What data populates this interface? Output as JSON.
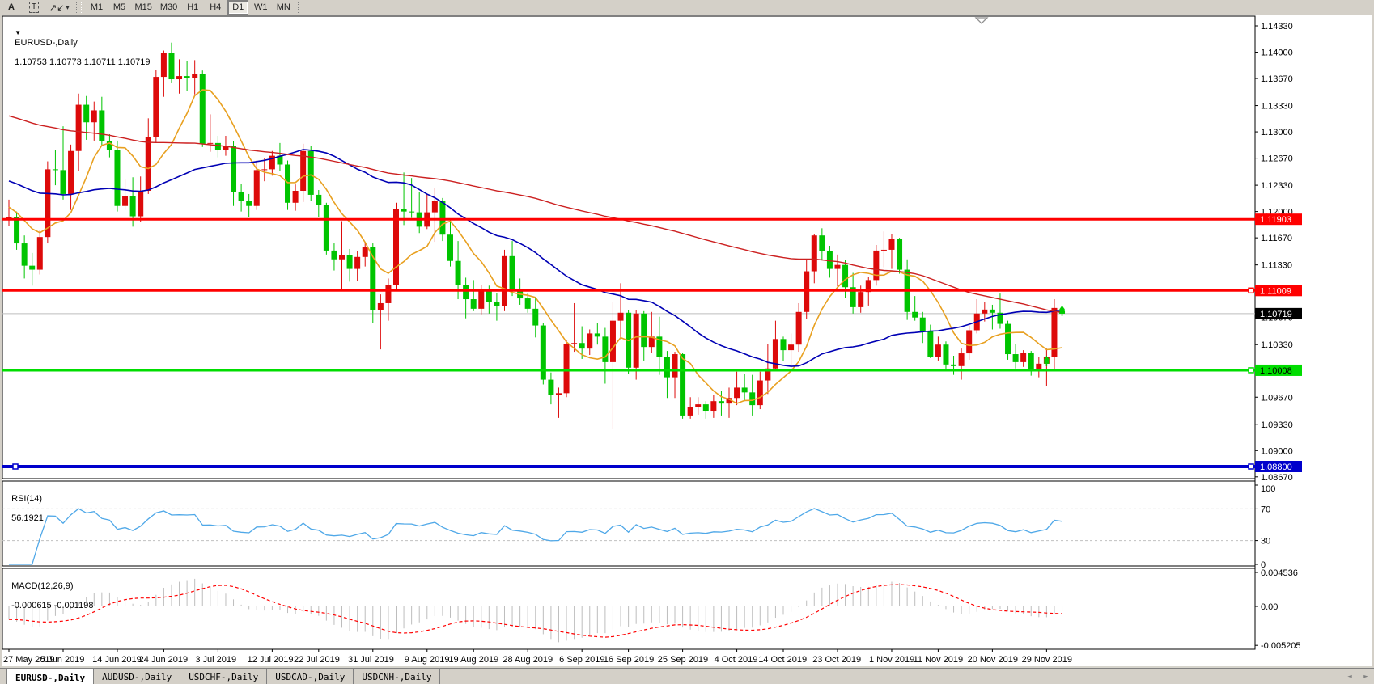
{
  "toolbar": {
    "buttons": [
      {
        "id": "text-a",
        "label": "A"
      },
      {
        "id": "text-label",
        "label": "T"
      },
      {
        "id": "arrow-objects",
        "label": "↗↙",
        "caret": "▾"
      }
    ],
    "timeframes": [
      "M1",
      "M5",
      "M15",
      "M30",
      "H1",
      "H4",
      "D1",
      "W1",
      "MN"
    ],
    "active_timeframe": "D1"
  },
  "chart_header": {
    "collapse_icon": "▼",
    "title": "EURUSD-,Daily",
    "ohlc_text": "1.10753 1.10773 1.10711 1.10719"
  },
  "tabs": {
    "items": [
      "EURUSD-,Daily",
      "AUDUSD-,Daily",
      "USDCHF-,Daily",
      "USDCAD-,Daily",
      "USDCNH-,Daily"
    ],
    "active_index": 0,
    "nav_left": "◄",
    "nav_right": "►"
  },
  "chart_data": {
    "type": "candlestick",
    "symbol": "EURUSD-,Daily",
    "current_ohlc": {
      "open": 1.10753,
      "high": 1.10773,
      "low": 1.10711,
      "close": 1.10719
    },
    "bull_color": "#dd0a0a",
    "bear_color": "#00c400",
    "ylim": [
      1.0867,
      1.1433
    ],
    "price_axis_ticks": [
      "1.14330",
      "1.14000",
      "1.13670",
      "1.13330",
      "1.13000",
      "1.12670",
      "1.12330",
      "1.12000",
      "1.11670",
      "1.11330",
      "1.10670",
      "1.10330",
      "1.09670",
      "1.09330",
      "1.09000",
      "1.08670"
    ],
    "hlines": [
      {
        "price": 1.11903,
        "label": "1.11903",
        "color": "#ff0000",
        "width": 3,
        "label_fg": "#ffffff",
        "handles": []
      },
      {
        "price": 1.11009,
        "label": "1.11009",
        "color": "#ff0000",
        "width": 3,
        "label_fg": "#ffffff",
        "handles": [
          "right"
        ]
      },
      {
        "price": 1.10008,
        "label": "1.10008",
        "color": "#00dd00",
        "width": 3,
        "label_fg": "#000000",
        "handles": [
          "right"
        ]
      },
      {
        "price": 1.088,
        "label": "1.08800",
        "color": "#0000cc",
        "width": 4,
        "label_fg": "#ffffff",
        "handles": [
          "left",
          "right"
        ]
      }
    ],
    "current_price_line": {
      "price": 1.10719,
      "label": "1.10719",
      "color": "#bdbdbd",
      "label_bg": "#000000",
      "label_fg": "#ffffff"
    },
    "moving_averages": [
      {
        "name": "fast-ma",
        "period": 8,
        "color": "#e8a020",
        "width": 1.6
      },
      {
        "name": "medium-ma",
        "period": 34,
        "color": "#0000b4",
        "width": 1.6
      },
      {
        "name": "slow-ma",
        "period": 100,
        "color": "#cc2020",
        "width": 1.4
      }
    ],
    "buy_arrows": [
      {
        "index": 134,
        "price": 1.1013,
        "color": "#00cc00"
      },
      {
        "index": 136,
        "price": 1.1076,
        "color": "#00cc00"
      }
    ],
    "date_ticks": [
      {
        "index": 0,
        "label": "27 May 2019"
      },
      {
        "index": 7,
        "label": "5 Jun 2019"
      },
      {
        "index": 14,
        "label": "14 Jun 2019"
      },
      {
        "index": 20,
        "label": "24 Jun 2019"
      },
      {
        "index": 27,
        "label": "3 Jul 2019"
      },
      {
        "index": 34,
        "label": "12 Jul 2019"
      },
      {
        "index": 40,
        "label": "22 Jul 2019"
      },
      {
        "index": 47,
        "label": "31 Jul 2019"
      },
      {
        "index": 54,
        "label": "9 Aug 2019"
      },
      {
        "index": 60,
        "label": "19 Aug 2019"
      },
      {
        "index": 67,
        "label": "28 Aug 2019"
      },
      {
        "index": 74,
        "label": "6 Sep 2019"
      },
      {
        "index": 80,
        "label": "16 Sep 2019"
      },
      {
        "index": 87,
        "label": "25 Sep 2019"
      },
      {
        "index": 94,
        "label": "4 Oct 2019"
      },
      {
        "index": 100,
        "label": "14 Oct 2019"
      },
      {
        "index": 107,
        "label": "23 Oct 2019"
      },
      {
        "index": 114,
        "label": "1 Nov 2019"
      },
      {
        "index": 120,
        "label": "11 Nov 2019"
      },
      {
        "index": 127,
        "label": "20 Nov 2019"
      },
      {
        "index": 134,
        "label": "29 Nov 2019"
      }
    ],
    "candles_ohlc": [
      [
        1.119,
        1.1215,
        1.1182,
        1.1193
      ],
      [
        1.1193,
        1.12,
        1.1152,
        1.116
      ],
      [
        1.116,
        1.117,
        1.1116,
        1.1132
      ],
      [
        1.1132,
        1.1148,
        1.1107,
        1.1127
      ],
      [
        1.1127,
        1.1176,
        1.1121,
        1.1168
      ],
      [
        1.1168,
        1.1263,
        1.116,
        1.1253
      ],
      [
        1.1253,
        1.1277,
        1.1233,
        1.1252
      ],
      [
        1.1252,
        1.1307,
        1.1215,
        1.1222
      ],
      [
        1.1222,
        1.1284,
        1.1202,
        1.1276
      ],
      [
        1.1276,
        1.1348,
        1.1251,
        1.1334
      ],
      [
        1.1334,
        1.1345,
        1.129,
        1.1312
      ],
      [
        1.1312,
        1.1338,
        1.1289,
        1.1327
      ],
      [
        1.1327,
        1.1344,
        1.1282,
        1.1288
      ],
      [
        1.1288,
        1.1297,
        1.1268,
        1.1277
      ],
      [
        1.1277,
        1.1289,
        1.12,
        1.1207
      ],
      [
        1.1207,
        1.124,
        1.1202,
        1.1219
      ],
      [
        1.1219,
        1.1243,
        1.1181,
        1.1194
      ],
      [
        1.1194,
        1.1244,
        1.1187,
        1.1226
      ],
      [
        1.1226,
        1.1317,
        1.1222,
        1.1293
      ],
      [
        1.1293,
        1.1378,
        1.1286,
        1.1369
      ],
      [
        1.1369,
        1.1402,
        1.1344,
        1.1399
      ],
      [
        1.1399,
        1.1412,
        1.1361,
        1.1366
      ],
      [
        1.1366,
        1.1391,
        1.1348,
        1.137
      ],
      [
        1.137,
        1.1389,
        1.1351,
        1.1368
      ],
      [
        1.1368,
        1.139,
        1.1347,
        1.1373
      ],
      [
        1.1373,
        1.1377,
        1.1281,
        1.1285
      ],
      [
        1.1285,
        1.1322,
        1.1275,
        1.1286
      ],
      [
        1.1286,
        1.1295,
        1.1268,
        1.1277
      ],
      [
        1.1277,
        1.1295,
        1.127,
        1.1282
      ],
      [
        1.1282,
        1.1288,
        1.1207,
        1.1225
      ],
      [
        1.1225,
        1.1235,
        1.12,
        1.1213
      ],
      [
        1.1213,
        1.1222,
        1.1193,
        1.1207
      ],
      [
        1.1207,
        1.1264,
        1.1202,
        1.1252
      ],
      [
        1.1252,
        1.1267,
        1.1238,
        1.1253
      ],
      [
        1.1253,
        1.1276,
        1.1245,
        1.127
      ],
      [
        1.127,
        1.1286,
        1.1251,
        1.1259
      ],
      [
        1.1259,
        1.1264,
        1.1202,
        1.1211
      ],
      [
        1.1211,
        1.1234,
        1.1201,
        1.1226
      ],
      [
        1.1226,
        1.1285,
        1.1212,
        1.1276
      ],
      [
        1.1276,
        1.1282,
        1.1213,
        1.1221
      ],
      [
        1.1221,
        1.1227,
        1.1193,
        1.1208
      ],
      [
        1.1208,
        1.1211,
        1.1146,
        1.1151
      ],
      [
        1.1151,
        1.116,
        1.1126,
        1.114
      ],
      [
        1.114,
        1.1188,
        1.1101,
        1.1145
      ],
      [
        1.1145,
        1.1153,
        1.1112,
        1.1128
      ],
      [
        1.1128,
        1.115,
        1.1113,
        1.1143
      ],
      [
        1.1143,
        1.1162,
        1.1131,
        1.1155
      ],
      [
        1.1155,
        1.116,
        1.106,
        1.1076
      ],
      [
        1.1076,
        1.1096,
        1.1027,
        1.1085
      ],
      [
        1.1085,
        1.1116,
        1.1063,
        1.1108
      ],
      [
        1.1108,
        1.1211,
        1.1101,
        1.1203
      ],
      [
        1.1203,
        1.1249,
        1.1183,
        1.12
      ],
      [
        1.12,
        1.1242,
        1.1192,
        1.1199
      ],
      [
        1.1199,
        1.1224,
        1.1173,
        1.1181
      ],
      [
        1.1181,
        1.1222,
        1.1178,
        1.1199
      ],
      [
        1.1199,
        1.123,
        1.1162,
        1.1213
      ],
      [
        1.1213,
        1.1217,
        1.1163,
        1.1171
      ],
      [
        1.1171,
        1.119,
        1.1131,
        1.1138
      ],
      [
        1.1138,
        1.1163,
        1.109,
        1.1108
      ],
      [
        1.1108,
        1.1117,
        1.1066,
        1.109
      ],
      [
        1.109,
        1.1114,
        1.1075,
        1.1078
      ],
      [
        1.1078,
        1.1108,
        1.1071,
        1.11
      ],
      [
        1.11,
        1.1107,
        1.1072,
        1.1086
      ],
      [
        1.1086,
        1.1098,
        1.1063,
        1.1081
      ],
      [
        1.1081,
        1.1152,
        1.1075,
        1.1144
      ],
      [
        1.1144,
        1.1163,
        1.1094,
        1.1101
      ],
      [
        1.1101,
        1.1116,
        1.1083,
        1.1091
      ],
      [
        1.1091,
        1.1098,
        1.1073,
        1.1078
      ],
      [
        1.1078,
        1.1093,
        1.1042,
        1.1057
      ],
      [
        1.1057,
        1.106,
        1.0983,
        1.0989
      ],
      [
        1.0989,
        1.0998,
        1.0958,
        1.097
      ],
      [
        1.097,
        1.0979,
        1.0941,
        1.0972
      ],
      [
        1.0972,
        1.1039,
        1.0967,
        1.1034
      ],
      [
        1.1034,
        1.1085,
        1.1024,
        1.1035
      ],
      [
        1.1035,
        1.1056,
        1.1015,
        1.1028
      ],
      [
        1.1028,
        1.1052,
        1.102,
        1.1047
      ],
      [
        1.1047,
        1.106,
        1.1033,
        1.1043
      ],
      [
        1.1043,
        1.1054,
        1.0984,
        1.1011
      ],
      [
        1.1011,
        1.1087,
        1.0927,
        1.1063
      ],
      [
        1.1063,
        1.111,
        1.1041,
        1.1073
      ],
      [
        1.1073,
        1.1076,
        1.0996,
        1.1004
      ],
      [
        1.1004,
        1.1076,
        1.0989,
        1.1072
      ],
      [
        1.1072,
        1.1075,
        1.1013,
        1.103
      ],
      [
        1.103,
        1.1074,
        1.1023,
        1.1043
      ],
      [
        1.1043,
        1.1068,
        1.0995,
        1.1017
      ],
      [
        1.1017,
        1.1025,
        1.0966,
        1.0992
      ],
      [
        1.0992,
        1.1024,
        1.0966,
        1.1021
      ],
      [
        1.1021,
        1.1023,
        1.094,
        1.0944
      ],
      [
        1.0944,
        1.0967,
        1.094,
        1.0955
      ],
      [
        1.0955,
        1.0967,
        1.0945,
        1.0958
      ],
      [
        1.0958,
        1.0962,
        1.094,
        1.095
      ],
      [
        1.095,
        1.097,
        1.0941,
        1.0962
      ],
      [
        1.0962,
        1.0975,
        1.0944,
        1.0959
      ],
      [
        1.0959,
        1.0979,
        1.0941,
        1.0966
      ],
      [
        1.0966,
        1.0999,
        1.0957,
        1.0979
      ],
      [
        1.0979,
        1.0996,
        1.0962,
        1.0973
      ],
      [
        1.0973,
        1.0995,
        1.0944,
        1.0957
      ],
      [
        1.0957,
        1.0999,
        1.0952,
        1.0988
      ],
      [
        1.0988,
        1.1034,
        1.0971,
        1.1003
      ],
      [
        1.1003,
        1.1063,
        1.1002,
        1.104
      ],
      [
        1.104,
        1.1043,
        1.1012,
        1.1026
      ],
      [
        1.1026,
        1.1047,
        1.1001,
        1.1033
      ],
      [
        1.1033,
        1.1085,
        1.1024,
        1.1074
      ],
      [
        1.1074,
        1.114,
        1.1065,
        1.1125
      ],
      [
        1.1125,
        1.1172,
        1.111,
        1.117
      ],
      [
        1.117,
        1.1179,
        1.1139,
        1.115
      ],
      [
        1.115,
        1.1157,
        1.1117,
        1.1128
      ],
      [
        1.1128,
        1.1146,
        1.1106,
        1.1133
      ],
      [
        1.1133,
        1.1139,
        1.1092,
        1.1105
      ],
      [
        1.1105,
        1.1123,
        1.1072,
        1.108
      ],
      [
        1.108,
        1.1107,
        1.1073,
        1.1099
      ],
      [
        1.1099,
        1.1118,
        1.1082,
        1.1114
      ],
      [
        1.1114,
        1.1158,
        1.1107,
        1.1151
      ],
      [
        1.1151,
        1.1175,
        1.113,
        1.1152
      ],
      [
        1.1152,
        1.1172,
        1.1128,
        1.1166
      ],
      [
        1.1166,
        1.1167,
        1.1122,
        1.1127
      ],
      [
        1.1127,
        1.114,
        1.1064,
        1.1074
      ],
      [
        1.1074,
        1.1094,
        1.1063,
        1.1067
      ],
      [
        1.1067,
        1.1074,
        1.1035,
        1.105
      ],
      [
        1.105,
        1.1058,
        1.1016,
        1.1018
      ],
      [
        1.1018,
        1.1043,
        1.1013,
        1.1033
      ],
      [
        1.1033,
        1.1037,
        1.1002,
        1.1008
      ],
      [
        1.1008,
        1.1019,
        1.0995,
        1.1006
      ],
      [
        1.1006,
        1.1028,
        1.0989,
        1.1022
      ],
      [
        1.1022,
        1.1057,
        1.1014,
        1.1051
      ],
      [
        1.1051,
        1.109,
        1.1047,
        1.1072
      ],
      [
        1.1072,
        1.1086,
        1.1062,
        1.1077
      ],
      [
        1.1077,
        1.1083,
        1.1052,
        1.1073
      ],
      [
        1.1073,
        1.1097,
        1.1053,
        1.1059
      ],
      [
        1.1059,
        1.1063,
        1.1014,
        1.1021
      ],
      [
        1.1021,
        1.1034,
        1.1003,
        1.1011
      ],
      [
        1.1011,
        1.1026,
        1.1005,
        1.1023
      ],
      [
        1.1023,
        1.1025,
        1.0994,
        1.1
      ],
      [
        1.1,
        1.1017,
        1.0992,
        1.1009
      ],
      [
        1.1009,
        1.1028,
        1.0981,
        1.1018
      ],
      [
        1.1018,
        1.109,
        1.1002,
        1.1079
      ],
      [
        1.10753,
        1.10773,
        1.10711,
        1.10719
      ]
    ],
    "indicators": {
      "rsi": {
        "label": "RSI(14)",
        "value_text": "56.1921",
        "period": 14,
        "levels": [
          70,
          30
        ],
        "axis_ticks": [
          100,
          70,
          30,
          0
        ],
        "line_color": "#4fa8e8"
      },
      "macd": {
        "label": "MACD(12,26,9)",
        "values_text": "-0.000615 -0.001198",
        "fast": 12,
        "slow": 26,
        "signal": 9,
        "axis_ticks": [
          "0.004536",
          "0.00",
          "-0.005205"
        ],
        "axis_values": [
          0.004536,
          0,
          -0.005205
        ],
        "hist_color": "#bdbdbd",
        "signal_color": "#ff0000"
      }
    }
  }
}
